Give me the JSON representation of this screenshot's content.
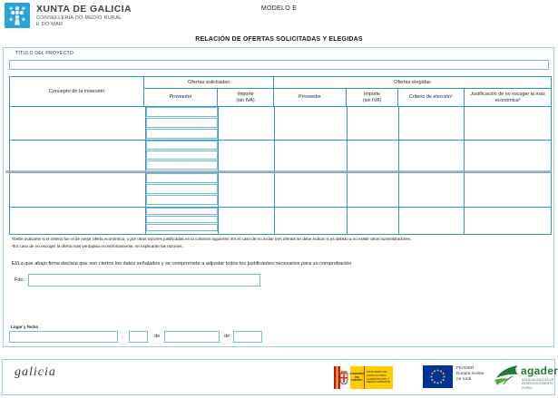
{
  "header": {
    "org_name": "XUNTA DE GALICIA",
    "org_dept": "CONSELLERÍA DO MEDIO RURAL\nE DO MAR",
    "model_label": "MODELO E"
  },
  "form": {
    "title": "RELACIÓN DE OFERTAS SOLICITADAS Y ELEGIDAS",
    "project_title_label": "TÍTULO DEL PROYECTO",
    "project_title_value": ""
  },
  "table": {
    "col_concept": "Concepto de la inversión",
    "group_solicitadas": "Ofertas solicitadas",
    "group_elegidas": "Ofertas elegidas",
    "col_proveedor_sol": "Proveedor",
    "col_importe_sol": "Importe\n(sin IVA)",
    "col_proveedor_ele": "Proveedor",
    "col_importe_ele": "Importe\n(sin IVA)",
    "col_criterio": "Criterio de elección¹",
    "col_justificacion": "Justificación de no escoger la más económica²",
    "rows": [
      {
        "concepto": "",
        "proveedores": [
          "",
          "",
          ""
        ],
        "importe": "",
        "proveedor_elegido": "",
        "importe_elegido": "",
        "criterio": "",
        "justificacion": ""
      },
      {
        "concepto": "",
        "proveedores": [
          "",
          "",
          ""
        ],
        "importe": "",
        "proveedor_elegido": "",
        "importe_elegido": "",
        "criterio": "",
        "justificacion": ""
      },
      {
        "concepto": "",
        "proveedores": [
          "",
          "",
          ""
        ],
        "importe": "",
        "proveedor_elegido": "",
        "importe_elegido": "",
        "criterio": "",
        "justificacion": ""
      },
      {
        "concepto": "",
        "proveedores": [
          "",
          "",
          ""
        ],
        "importe": "",
        "proveedor_elegido": "",
        "importe_elegido": "",
        "criterio": "",
        "justificacion": ""
      }
    ]
  },
  "footnotes": {
    "note1": "¹Debe indicarse si el criterio fue el de mejor oferta económica, o por otras razones justificadas en la columna siguiente. En el caso de no incluir tres ofertas se debe indicar si es debido a no existir otros suministradores.",
    "note2": "²En caso de no escoger la oferta más ventajosa económicamente, se explicarán las razones."
  },
  "declaration": "El/La que abajo firma declara que son ciertos los datos señalados y se compromete a adjuntar todos los justificantes necesarios para su comprobación",
  "signature": {
    "label": "Fdo.:",
    "value": ""
  },
  "place_date": {
    "label": "Lugar y fecha",
    "place_value": "",
    "comma": ",",
    "de1": "de",
    "month_value": "",
    "de2": "de",
    "day_value": "",
    "year_value": ""
  },
  "footer": {
    "galicia_wordmark": "galicia",
    "spain_gov": "GOBIERNO\nDE ESPAÑA",
    "spain_ministry": "MINISTERIO DE AGRICULTURA, ALIMENTACIÓN Y MEDIO AMBIENTE",
    "feader_text": "FEADER:\nEuropa inviste\nno rural",
    "agader_name": "agader",
    "agader_sub": "AXENCIA GALEGA DE\nDESENVOLVEMENTO RURAL"
  },
  "colors": {
    "grid_blue": "#3093d3",
    "field_blue": "#74b8e4",
    "frame_blue": "#9ecdeb",
    "xunta_blue": "#2aa3dc",
    "spain_red": "#c8102e",
    "spain_yellow": "#ffcc00",
    "eu_blue": "#003399",
    "agader_green": "#1e7a34"
  }
}
